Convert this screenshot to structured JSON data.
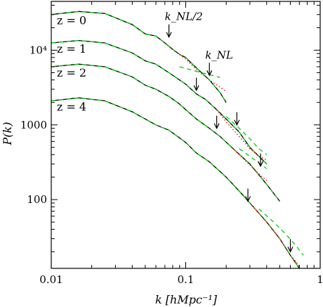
{
  "chart_data": {
    "type": "line",
    "xlabel": "k  [hMpc⁻¹]",
    "ylabel": "P(k)",
    "xscale": "log",
    "yscale": "log",
    "xlim": [
      0.01,
      1
    ],
    "ylim": [
      12,
      45000
    ],
    "x_ticks": [
      {
        "value": 0.01,
        "label": "0.01"
      },
      {
        "value": 0.1,
        "label": "0.1"
      },
      {
        "value": 1,
        "label": "1"
      }
    ],
    "y_ticks": [
      {
        "value": 100,
        "label": "100"
      },
      {
        "value": 1000,
        "label": "1000"
      },
      {
        "value": 10000,
        "label": "10⁴"
      }
    ],
    "colors": {
      "linear": "#000000",
      "nonlinear_model": "#dd0000",
      "fit": "#00cc00",
      "arrows": "#000000"
    },
    "series": [
      {
        "z_label": "z = 0",
        "line": [
          [
            0.01,
            30000
          ],
          [
            0.016,
            33000
          ],
          [
            0.025,
            31000
          ],
          [
            0.04,
            22000
          ],
          [
            0.05,
            16500
          ],
          [
            0.06,
            15500
          ],
          [
            0.07,
            12500
          ],
          [
            0.08,
            10300
          ],
          [
            0.09,
            8800
          ],
          [
            0.1,
            8000
          ],
          [
            0.12,
            5800
          ],
          [
            0.15,
            4000
          ],
          [
            0.18,
            2700
          ],
          [
            0.2,
            2000
          ]
        ],
        "dotted": [
          [
            0.07,
            12500
          ],
          [
            0.08,
            10200
          ],
          [
            0.1,
            7600
          ],
          [
            0.12,
            5500
          ],
          [
            0.15,
            4000
          ],
          [
            0.18,
            3200
          ],
          [
            0.2,
            2800
          ]
        ],
        "dashed": [
          [
            0.09,
            6000
          ],
          [
            0.12,
            5200
          ],
          [
            0.15,
            4700
          ],
          [
            0.18,
            4300
          ]
        ],
        "arrows": [
          {
            "k": 0.075,
            "tip_p": 15000,
            "label": "k_NL/2"
          },
          {
            "k": 0.15,
            "tip_p": 4600,
            "label": "k_NL"
          }
        ]
      },
      {
        "z_label": "z = 1",
        "line": [
          [
            0.01,
            12500
          ],
          [
            0.016,
            13500
          ],
          [
            0.025,
            12500
          ],
          [
            0.04,
            9200
          ],
          [
            0.05,
            7200
          ],
          [
            0.06,
            6500
          ],
          [
            0.075,
            5000
          ],
          [
            0.09,
            4000
          ],
          [
            0.1,
            3500
          ],
          [
            0.12,
            2600
          ],
          [
            0.14,
            2200
          ],
          [
            0.17,
            1600
          ],
          [
            0.2,
            1200
          ],
          [
            0.25,
            800
          ],
          [
            0.3,
            500
          ],
          [
            0.35,
            380
          ],
          [
            0.4,
            300
          ]
        ],
        "dotted": [
          [
            0.17,
            1600
          ],
          [
            0.2,
            1100
          ],
          [
            0.25,
            700
          ],
          [
            0.3,
            480
          ],
          [
            0.35,
            380
          ],
          [
            0.4,
            340
          ]
        ],
        "dashed": [
          [
            0.2,
            1300
          ],
          [
            0.25,
            900
          ],
          [
            0.3,
            650
          ],
          [
            0.35,
            480
          ],
          [
            0.4,
            400
          ]
        ],
        "arrows": [
          {
            "k": 0.12,
            "tip_p": 2900
          },
          {
            "k": 0.24,
            "tip_p": 1000
          }
        ]
      },
      {
        "z_label": "z = 2",
        "line": [
          [
            0.01,
            6000
          ],
          [
            0.016,
            6500
          ],
          [
            0.025,
            6000
          ],
          [
            0.04,
            4400
          ],
          [
            0.05,
            3400
          ],
          [
            0.06,
            3000
          ],
          [
            0.075,
            2400
          ],
          [
            0.09,
            1900
          ],
          [
            0.1,
            1600
          ],
          [
            0.12,
            1200
          ],
          [
            0.15,
            900
          ],
          [
            0.18,
            700
          ],
          [
            0.22,
            500
          ],
          [
            0.3,
            300
          ],
          [
            0.4,
            160
          ],
          [
            0.5,
            95
          ]
        ],
        "dotted": [
          [
            0.22,
            500
          ],
          [
            0.25,
            400
          ],
          [
            0.3,
            290
          ],
          [
            0.35,
            220
          ],
          [
            0.4,
            180
          ]
        ],
        "dashed": [
          [
            0.25,
            480
          ],
          [
            0.3,
            380
          ],
          [
            0.35,
            310
          ],
          [
            0.4,
            260
          ]
        ],
        "arrows": [
          {
            "k": 0.17,
            "tip_p": 900
          },
          {
            "k": 0.36,
            "tip_p": 280
          }
        ]
      },
      {
        "z_label": "z = 4",
        "line": [
          [
            0.01,
            2100
          ],
          [
            0.016,
            2300
          ],
          [
            0.025,
            2100
          ],
          [
            0.04,
            1500
          ],
          [
            0.05,
            1200
          ],
          [
            0.06,
            1000
          ],
          [
            0.075,
            850
          ],
          [
            0.09,
            670
          ],
          [
            0.1,
            580
          ],
          [
            0.12,
            420
          ],
          [
            0.15,
            320
          ],
          [
            0.2,
            200
          ],
          [
            0.25,
            130
          ],
          [
            0.3,
            90
          ],
          [
            0.4,
            50
          ],
          [
            0.5,
            30
          ],
          [
            0.6,
            18
          ],
          [
            0.7,
            12
          ]
        ],
        "dotted": [
          [
            0.3,
            90
          ],
          [
            0.4,
            50
          ],
          [
            0.5,
            30
          ],
          [
            0.6,
            18
          ],
          [
            0.7,
            13
          ]
        ],
        "dashed": [
          [
            0.35,
            75
          ],
          [
            0.45,
            50
          ],
          [
            0.55,
            35
          ],
          [
            0.65,
            25
          ],
          [
            0.75,
            18
          ]
        ],
        "arrows": [
          {
            "k": 0.29,
            "tip_p": 95
          },
          {
            "k": 0.6,
            "tip_p": 20
          }
        ]
      }
    ]
  }
}
